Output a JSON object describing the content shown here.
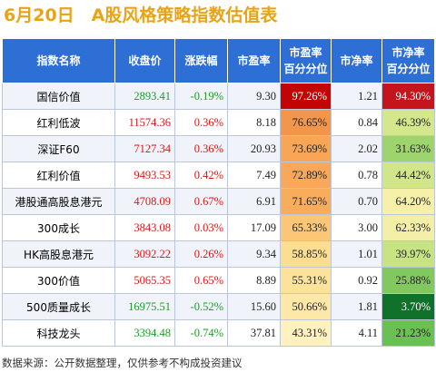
{
  "title": "6月20日　A股风格策略指数估值表",
  "headers": [
    "指数名称",
    "收盘价",
    "涨跌幅",
    "市盈率",
    "市盈率\n百分分位",
    "市净率",
    "市净率\n百分分位"
  ],
  "rows": [
    {
      "name": "国信价值",
      "close": "2893.41",
      "change": "-0.19%",
      "pe": "9.30",
      "pe_pct": "97.26%",
      "pb": "1.21",
      "pb_pct": "94.30%"
    },
    {
      "name": "红利低波",
      "close": "11574.36",
      "change": "0.36%",
      "pe": "8.18",
      "pe_pct": "76.65%",
      "pb": "0.84",
      "pb_pct": "46.39%"
    },
    {
      "name": "深证F60",
      "close": "7127.34",
      "change": "0.36%",
      "pe": "20.93",
      "pe_pct": "73.69%",
      "pb": "2.02",
      "pb_pct": "31.63%"
    },
    {
      "name": "红利价值",
      "close": "9493.53",
      "change": "0.42%",
      "pe": "7.49",
      "pe_pct": "72.89%",
      "pb": "0.78",
      "pb_pct": "44.42%"
    },
    {
      "name": "港股通高股息港元",
      "close": "4708.09",
      "change": "0.67%",
      "pe": "6.91",
      "pe_pct": "71.65%",
      "pb": "0.70",
      "pb_pct": "64.20%"
    },
    {
      "name": "300成长",
      "close": "3843.08",
      "change": "0.03%",
      "pe": "17.09",
      "pe_pct": "65.33%",
      "pb": "3.00",
      "pb_pct": "62.33%"
    },
    {
      "name": "HK高股息港元",
      "close": "3092.22",
      "change": "0.26%",
      "pe": "9.34",
      "pe_pct": "58.85%",
      "pb": "1.01",
      "pb_pct": "39.97%"
    },
    {
      "name": "300价值",
      "close": "5065.35",
      "change": "0.65%",
      "pe": "8.89",
      "pe_pct": "55.31%",
      "pb": "0.92",
      "pb_pct": "25.88%"
    },
    {
      "name": "500质量成长",
      "close": "16975.51",
      "change": "-0.52%",
      "pe": "15.60",
      "pe_pct": "50.66%",
      "pb": "1.81",
      "pb_pct": "3.70%"
    },
    {
      "name": "科技龙头",
      "close": "3394.48",
      "change": "-0.74%",
      "pe": "37.81",
      "pe_pct": "43.31%",
      "pb": "4.11",
      "pb_pct": "21.23%"
    }
  ],
  "footer": "数据来源：公开数据整理，仅供参考不构成投资建议",
  "colors": {
    "title": "#e8a317",
    "header_bg": "#2e6fd6",
    "rise": "#d11a1a",
    "fall": "#1f9a2b"
  }
}
